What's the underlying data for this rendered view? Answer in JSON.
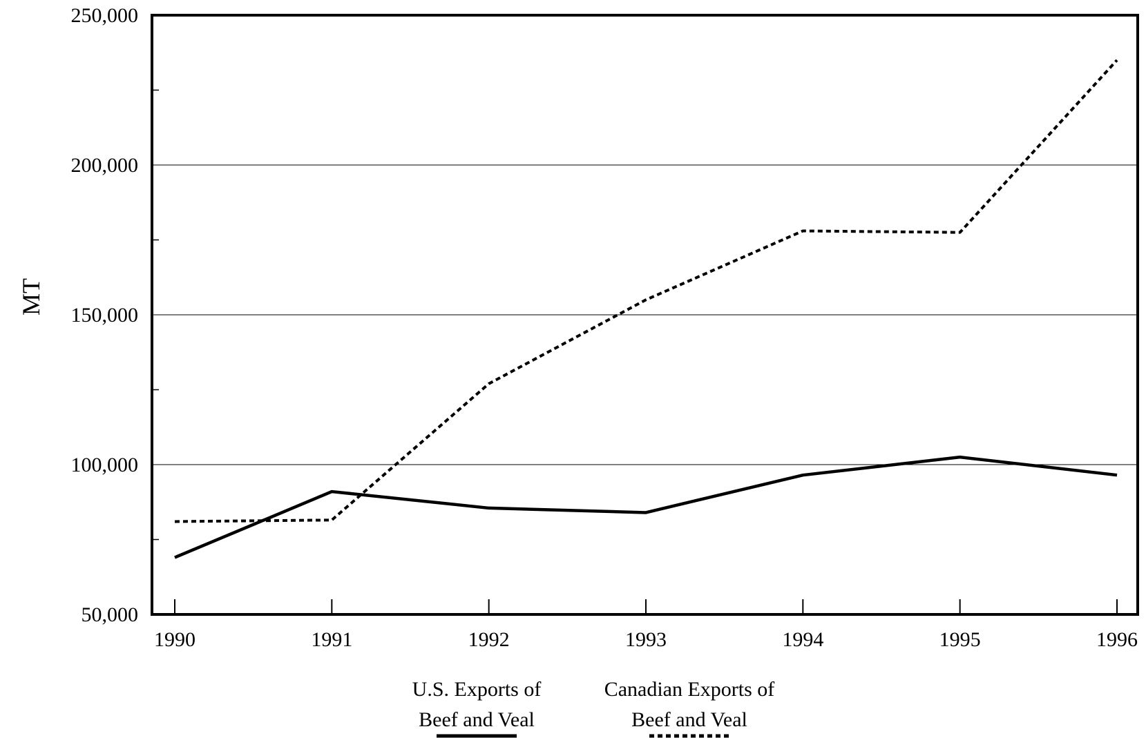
{
  "chart_data": {
    "type": "line",
    "title": "",
    "xlabel": "",
    "ylabel": "MT",
    "x": [
      "1990",
      "1991",
      "1992",
      "1993",
      "1994",
      "1995",
      "1996"
    ],
    "ylim": [
      50000,
      250000
    ],
    "y_major_ticks": [
      50000,
      100000,
      150000,
      200000,
      250000
    ],
    "y_tick_labels": [
      "50,000",
      "100,000",
      "150,000",
      "200,000",
      "250,000"
    ],
    "y_minor_ticks": [
      75000,
      125000,
      175000,
      225000
    ],
    "grid": "horizontal-major",
    "legend_position": "bottom-center",
    "series": [
      {
        "name_line1": "U.S. Exports of",
        "name_line2": "Beef and Veal",
        "style": "solid",
        "color": "#000000",
        "values": [
          69000,
          91000,
          85500,
          84000,
          96500,
          102500,
          96500
        ]
      },
      {
        "name_line1": "Canadian Exports of",
        "name_line2": "Beef and Veal",
        "style": "dotted",
        "color": "#000000",
        "values": [
          81000,
          81500,
          127000,
          155000,
          178000,
          177500,
          235000
        ]
      }
    ]
  }
}
